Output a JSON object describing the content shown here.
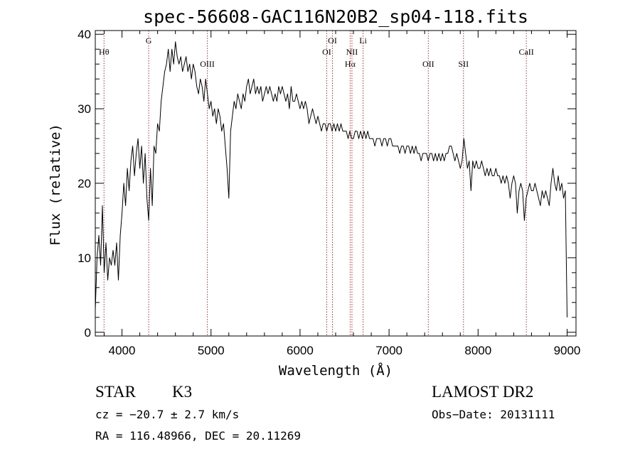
{
  "chart_data": {
    "type": "line",
    "title": "spec-56608-GAC116N20B2_sp04-118.fits",
    "xlabel": "Wavelength (Å)",
    "ylabel": "Flux (relative)",
    "xlim": [
      3700,
      9100
    ],
    "ylim": [
      -0.5,
      40.5
    ],
    "xticks": [
      4000,
      5000,
      6000,
      7000,
      8000,
      9000
    ],
    "yticks": [
      0,
      10,
      20,
      30,
      40
    ],
    "grid": false,
    "series": [
      {
        "points": [
          [
            3700,
            3
          ],
          [
            3720,
            10
          ],
          [
            3740,
            13
          ],
          [
            3760,
            9
          ],
          [
            3780,
            17
          ],
          [
            3800,
            8
          ],
          [
            3820,
            12
          ],
          [
            3840,
            7
          ],
          [
            3860,
            10
          ],
          [
            3880,
            9
          ],
          [
            3900,
            11
          ],
          [
            3920,
            9
          ],
          [
            3940,
            12
          ],
          [
            3960,
            7
          ],
          [
            3980,
            13
          ],
          [
            4000,
            16
          ],
          [
            4020,
            20
          ],
          [
            4040,
            17
          ],
          [
            4060,
            22
          ],
          [
            4080,
            19
          ],
          [
            4100,
            23
          ],
          [
            4120,
            25
          ],
          [
            4140,
            21
          ],
          [
            4160,
            24
          ],
          [
            4180,
            26
          ],
          [
            4200,
            22
          ],
          [
            4220,
            25
          ],
          [
            4240,
            20
          ],
          [
            4260,
            24
          ],
          [
            4280,
            18
          ],
          [
            4300,
            15
          ],
          [
            4320,
            22
          ],
          [
            4340,
            17
          ],
          [
            4360,
            25
          ],
          [
            4380,
            24
          ],
          [
            4400,
            28
          ],
          [
            4420,
            27
          ],
          [
            4440,
            31
          ],
          [
            4460,
            33
          ],
          [
            4480,
            35
          ],
          [
            4500,
            36
          ],
          [
            4520,
            38
          ],
          [
            4540,
            35
          ],
          [
            4560,
            38
          ],
          [
            4580,
            36
          ],
          [
            4600,
            39
          ],
          [
            4620,
            37
          ],
          [
            4640,
            36
          ],
          [
            4660,
            37
          ],
          [
            4680,
            35
          ],
          [
            4700,
            36
          ],
          [
            4720,
            37
          ],
          [
            4740,
            35
          ],
          [
            4760,
            36
          ],
          [
            4780,
            34
          ],
          [
            4800,
            36
          ],
          [
            4820,
            35
          ],
          [
            4840,
            33
          ],
          [
            4860,
            32
          ],
          [
            4880,
            34
          ],
          [
            4900,
            33
          ],
          [
            4920,
            31
          ],
          [
            4940,
            34
          ],
          [
            4960,
            32
          ],
          [
            4980,
            30
          ],
          [
            5000,
            31
          ],
          [
            5020,
            29
          ],
          [
            5040,
            30
          ],
          [
            5060,
            28
          ],
          [
            5080,
            30
          ],
          [
            5100,
            29
          ],
          [
            5120,
            27
          ],
          [
            5140,
            28
          ],
          [
            5160,
            25
          ],
          [
            5180,
            22
          ],
          [
            5200,
            18
          ],
          [
            5220,
            27
          ],
          [
            5240,
            29
          ],
          [
            5260,
            31
          ],
          [
            5280,
            30
          ],
          [
            5300,
            32
          ],
          [
            5320,
            31
          ],
          [
            5340,
            30
          ],
          [
            5360,
            32
          ],
          [
            5380,
            31
          ],
          [
            5400,
            33
          ],
          [
            5420,
            34
          ],
          [
            5440,
            32
          ],
          [
            5460,
            33
          ],
          [
            5480,
            34
          ],
          [
            5500,
            32
          ],
          [
            5520,
            33
          ],
          [
            5540,
            32
          ],
          [
            5560,
            33
          ],
          [
            5580,
            31
          ],
          [
            5600,
            32
          ],
          [
            5620,
            33
          ],
          [
            5640,
            32
          ],
          [
            5660,
            33
          ],
          [
            5680,
            32
          ],
          [
            5700,
            31
          ],
          [
            5720,
            32
          ],
          [
            5740,
            31
          ],
          [
            5760,
            33
          ],
          [
            5780,
            32
          ],
          [
            5800,
            33
          ],
          [
            5820,
            32
          ],
          [
            5840,
            31
          ],
          [
            5860,
            32
          ],
          [
            5880,
            30
          ],
          [
            5900,
            33
          ],
          [
            5920,
            31
          ],
          [
            5940,
            31
          ],
          [
            5960,
            32
          ],
          [
            5980,
            31
          ],
          [
            6000,
            30
          ],
          [
            6020,
            31
          ],
          [
            6040,
            30
          ],
          [
            6060,
            31
          ],
          [
            6080,
            30
          ],
          [
            6100,
            28
          ],
          [
            6120,
            29
          ],
          [
            6140,
            30
          ],
          [
            6160,
            29
          ],
          [
            6180,
            28
          ],
          [
            6200,
            29
          ],
          [
            6220,
            28
          ],
          [
            6240,
            27
          ],
          [
            6260,
            28
          ],
          [
            6280,
            28
          ],
          [
            6300,
            27
          ],
          [
            6320,
            28
          ],
          [
            6340,
            28
          ],
          [
            6360,
            27
          ],
          [
            6380,
            28
          ],
          [
            6400,
            27
          ],
          [
            6420,
            28
          ],
          [
            6440,
            27
          ],
          [
            6460,
            28
          ],
          [
            6480,
            27
          ],
          [
            6500,
            27
          ],
          [
            6520,
            27
          ],
          [
            6540,
            26
          ],
          [
            6560,
            27
          ],
          [
            6580,
            26
          ],
          [
            6600,
            26
          ],
          [
            6620,
            27
          ],
          [
            6640,
            27
          ],
          [
            6660,
            26
          ],
          [
            6680,
            27
          ],
          [
            6700,
            26
          ],
          [
            6720,
            27
          ],
          [
            6740,
            26
          ],
          [
            6760,
            27
          ],
          [
            6780,
            26
          ],
          [
            6800,
            26
          ],
          [
            6820,
            26
          ],
          [
            6840,
            25
          ],
          [
            6860,
            26
          ],
          [
            6880,
            26
          ],
          [
            6900,
            26
          ],
          [
            6920,
            25
          ],
          [
            6940,
            26
          ],
          [
            6960,
            26
          ],
          [
            6980,
            25
          ],
          [
            7000,
            26
          ],
          [
            7020,
            26
          ],
          [
            7040,
            25
          ],
          [
            7060,
            25
          ],
          [
            7080,
            25
          ],
          [
            7100,
            25
          ],
          [
            7120,
            24
          ],
          [
            7140,
            25
          ],
          [
            7160,
            25
          ],
          [
            7180,
            24
          ],
          [
            7200,
            25
          ],
          [
            7220,
            25
          ],
          [
            7240,
            24
          ],
          [
            7260,
            25
          ],
          [
            7280,
            24
          ],
          [
            7300,
            25
          ],
          [
            7320,
            24
          ],
          [
            7340,
            24
          ],
          [
            7360,
            23
          ],
          [
            7380,
            24
          ],
          [
            7400,
            24
          ],
          [
            7420,
            24
          ],
          [
            7440,
            23
          ],
          [
            7460,
            24
          ],
          [
            7480,
            24
          ],
          [
            7500,
            23
          ],
          [
            7520,
            24
          ],
          [
            7540,
            23
          ],
          [
            7560,
            24
          ],
          [
            7580,
            23
          ],
          [
            7600,
            24
          ],
          [
            7620,
            23
          ],
          [
            7640,
            24
          ],
          [
            7660,
            24
          ],
          [
            7680,
            25
          ],
          [
            7700,
            25
          ],
          [
            7720,
            24
          ],
          [
            7740,
            23
          ],
          [
            7760,
            24
          ],
          [
            7780,
            23
          ],
          [
            7800,
            22
          ],
          [
            7820,
            23
          ],
          [
            7840,
            26
          ],
          [
            7860,
            24
          ],
          [
            7880,
            22
          ],
          [
            7900,
            23
          ],
          [
            7920,
            19
          ],
          [
            7940,
            23
          ],
          [
            7960,
            22
          ],
          [
            7980,
            23
          ],
          [
            8000,
            22
          ],
          [
            8020,
            22
          ],
          [
            8040,
            23
          ],
          [
            8060,
            22
          ],
          [
            8080,
            21
          ],
          [
            8100,
            22
          ],
          [
            8120,
            21
          ],
          [
            8140,
            22
          ],
          [
            8160,
            21
          ],
          [
            8180,
            21
          ],
          [
            8200,
            22
          ],
          [
            8220,
            21
          ],
          [
            8240,
            21
          ],
          [
            8260,
            20
          ],
          [
            8280,
            21
          ],
          [
            8300,
            20
          ],
          [
            8320,
            21
          ],
          [
            8340,
            20
          ],
          [
            8360,
            18
          ],
          [
            8380,
            20
          ],
          [
            8400,
            21
          ],
          [
            8420,
            20
          ],
          [
            8440,
            16
          ],
          [
            8460,
            19
          ],
          [
            8480,
            20
          ],
          [
            8500,
            19
          ],
          [
            8520,
            15
          ],
          [
            8540,
            18
          ],
          [
            8560,
            19
          ],
          [
            8580,
            20
          ],
          [
            8600,
            19
          ],
          [
            8620,
            19
          ],
          [
            8640,
            20
          ],
          [
            8660,
            19
          ],
          [
            8680,
            18
          ],
          [
            8700,
            17
          ],
          [
            8720,
            19
          ],
          [
            8740,
            18
          ],
          [
            8760,
            19
          ],
          [
            8780,
            18
          ],
          [
            8800,
            17
          ],
          [
            8820,
            20
          ],
          [
            8840,
            22
          ],
          [
            8860,
            20
          ],
          [
            8880,
            19
          ],
          [
            8900,
            21
          ],
          [
            8920,
            19
          ],
          [
            8940,
            20
          ],
          [
            8960,
            18
          ],
          [
            8980,
            19
          ],
          [
            9000,
            2
          ]
        ]
      }
    ],
    "lines": [
      {
        "name": "Hθ",
        "x": 3798,
        "row": 2
      },
      {
        "name": "G",
        "x": 4300,
        "row": 1
      },
      {
        "name": "OIII",
        "x": 4959,
        "row": 3
      },
      {
        "name": "OI",
        "x": 6300,
        "row": 2
      },
      {
        "name": "OI",
        "x": 6364,
        "row": 1
      },
      {
        "name": "Hα",
        "x": 6563,
        "row": 3
      },
      {
        "name": "NII",
        "x": 6583,
        "row": 2
      },
      {
        "name": "Li",
        "x": 6708,
        "row": 1
      },
      {
        "name": "OII",
        "x": 7441,
        "row": 3
      },
      {
        "name": "SII",
        "x": 7836,
        "row": 3
      },
      {
        "name": "CaII",
        "x": 8542,
        "row": 2
      }
    ]
  },
  "info": {
    "star_label": "STAR",
    "spectral_type": "K3",
    "survey": "LAMOST DR2",
    "cz": "cz = −20.7 ± 2.7 km/s",
    "obs_date": "Obs−Date: 20131111",
    "coords": "RA = 116.48966, DEC =  20.11269"
  },
  "colors": {
    "spectrum": "#000000",
    "line_markers": "#b03030"
  }
}
